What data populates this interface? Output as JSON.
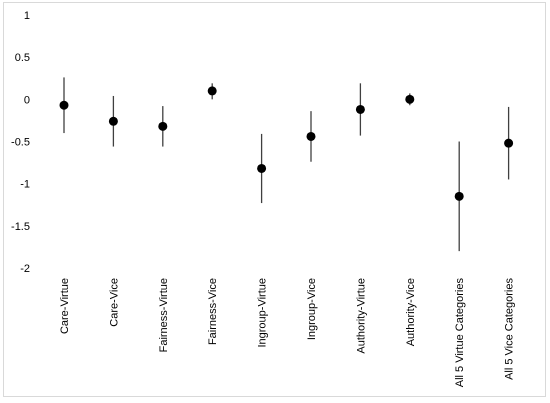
{
  "chart_data": {
    "type": "scatter",
    "subtype": "point-with-error-bars",
    "title": "",
    "xlabel": "",
    "ylabel": "",
    "ylim": [
      -2,
      1
    ],
    "yticks": [
      1,
      0.5,
      0,
      -0.5,
      -1,
      -1.5,
      -2
    ],
    "ytick_labels": [
      "1",
      "0.5",
      "0",
      "-0.5",
      "-1",
      "-1.5",
      "-2"
    ],
    "grid": false,
    "legend": "none",
    "categories": [
      "Care-Virtue",
      "Care-Vice",
      "Fairness-Virtue",
      "Fairness-Vice",
      "Ingroup-Virtue",
      "Ingroup-Vice",
      "Authority-Virtue",
      "Authority-Vice",
      "All 5 Virtue Categories",
      "All 5 Vice Categories"
    ],
    "values": [
      -0.07,
      -0.26,
      -0.32,
      0.1,
      -0.82,
      -0.44,
      -0.12,
      0.0,
      -1.15,
      -0.52
    ],
    "lower": [
      -0.4,
      -0.56,
      -0.56,
      0.0,
      -1.23,
      -0.74,
      -0.43,
      -0.07,
      -1.8,
      -0.95
    ],
    "upper": [
      0.26,
      0.04,
      -0.08,
      0.19,
      -0.41,
      -0.14,
      0.19,
      0.07,
      -0.5,
      -0.09
    ],
    "colors": {
      "point": "#000000",
      "errorbar": "#404040",
      "text": "#000000",
      "frame": "#d9d9d9"
    }
  }
}
